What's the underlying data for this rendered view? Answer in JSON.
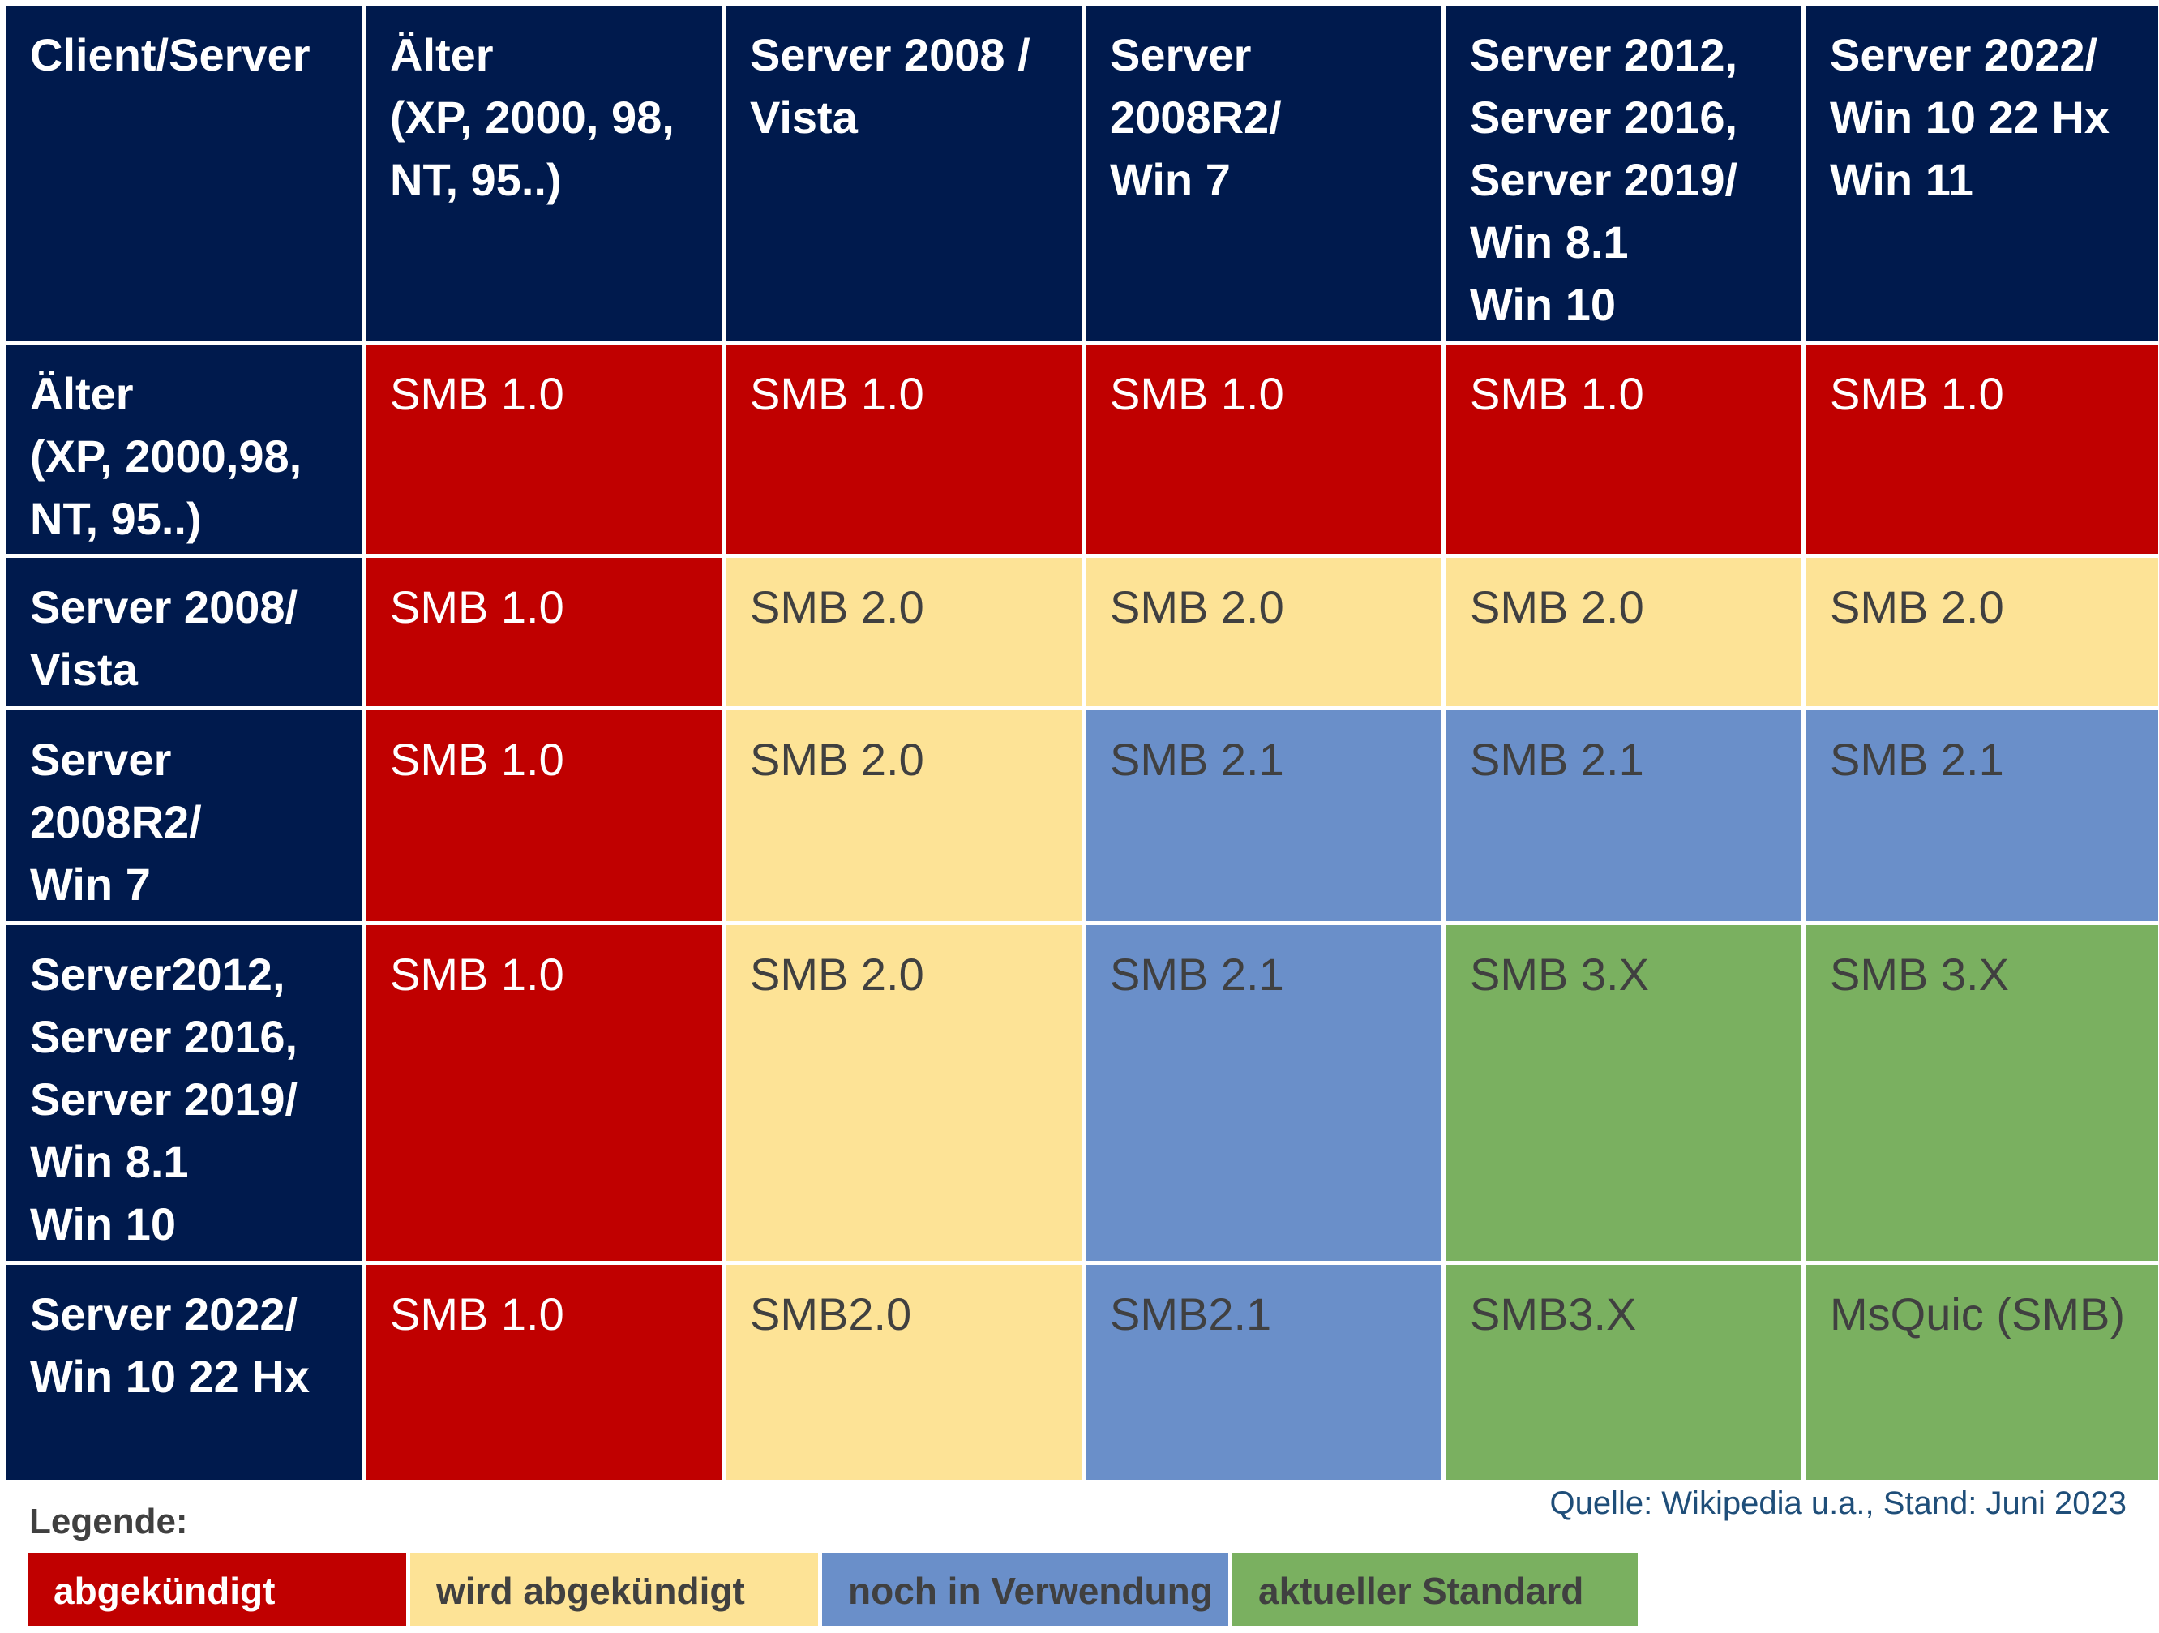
{
  "table": {
    "corner": "Client/Server",
    "columns": [
      "Älter\n(XP, 2000, 98,\nNT, 95..)",
      "Server 2008 /\nVista",
      "Server\n2008R2/\nWin 7",
      "Server 2012,\nServer 2016,\nServer 2019/\nWin 8.1\nWin 10",
      "Server 2022/\nWin 10 22 Hx\nWin 11"
    ],
    "rows": [
      {
        "label": "Älter\n(XP, 2000,98,\nNT, 95..)",
        "cells": [
          {
            "text": "SMB 1.0",
            "status": "red"
          },
          {
            "text": "SMB 1.0",
            "status": "red"
          },
          {
            "text": "SMB 1.0",
            "status": "red"
          },
          {
            "text": "SMB 1.0",
            "status": "red"
          },
          {
            "text": "SMB 1.0",
            "status": "red"
          }
        ]
      },
      {
        "label": "Server 2008/\nVista",
        "cells": [
          {
            "text": "SMB 1.0",
            "status": "red"
          },
          {
            "text": "SMB 2.0",
            "status": "yellow"
          },
          {
            "text": "SMB 2.0",
            "status": "yellow"
          },
          {
            "text": "SMB 2.0",
            "status": "yellow"
          },
          {
            "text": "SMB 2.0",
            "status": "yellow"
          }
        ]
      },
      {
        "label": "Server\n2008R2/\nWin 7",
        "cells": [
          {
            "text": "SMB 1.0",
            "status": "red"
          },
          {
            "text": "SMB 2.0",
            "status": "yellow"
          },
          {
            "text": "SMB 2.1",
            "status": "blue"
          },
          {
            "text": "SMB 2.1",
            "status": "blue"
          },
          {
            "text": "SMB 2.1",
            "status": "blue"
          }
        ]
      },
      {
        "label": "Server2012,\nServer 2016,\nServer 2019/\nWin 8.1\nWin 10",
        "cells": [
          {
            "text": "SMB 1.0",
            "status": "red"
          },
          {
            "text": "SMB 2.0",
            "status": "yellow"
          },
          {
            "text": "SMB 2.1",
            "status": "blue"
          },
          {
            "text": "SMB 3.X",
            "status": "green"
          },
          {
            "text": "SMB 3.X",
            "status": "green"
          }
        ]
      },
      {
        "label": "Server 2022/\nWin 10 22 Hx",
        "cells": [
          {
            "text": "SMB 1.0",
            "status": "red"
          },
          {
            "text": "SMB2.0",
            "status": "yellow"
          },
          {
            "text": "SMB2.1",
            "status": "blue"
          },
          {
            "text": "SMB3.X",
            "status": "green"
          },
          {
            "text": "MsQuic (SMB)",
            "status": "green"
          }
        ]
      }
    ]
  },
  "legend": {
    "title": "Legende:",
    "items": [
      {
        "label": "abgekündigt",
        "status": "red"
      },
      {
        "label": "wird abgekündigt",
        "status": "yellow"
      },
      {
        "label": "noch in Verwendung",
        "status": "blue"
      },
      {
        "label": "aktueller Standard",
        "status": "green"
      }
    ]
  },
  "source": "Quelle: Wikipedia u.a., Stand: Juni 2023",
  "colors": {
    "header": "#001a4d",
    "red": "#c00000",
    "yellow": "#fde396",
    "blue": "#6a8fc9",
    "green": "#7ab060"
  }
}
